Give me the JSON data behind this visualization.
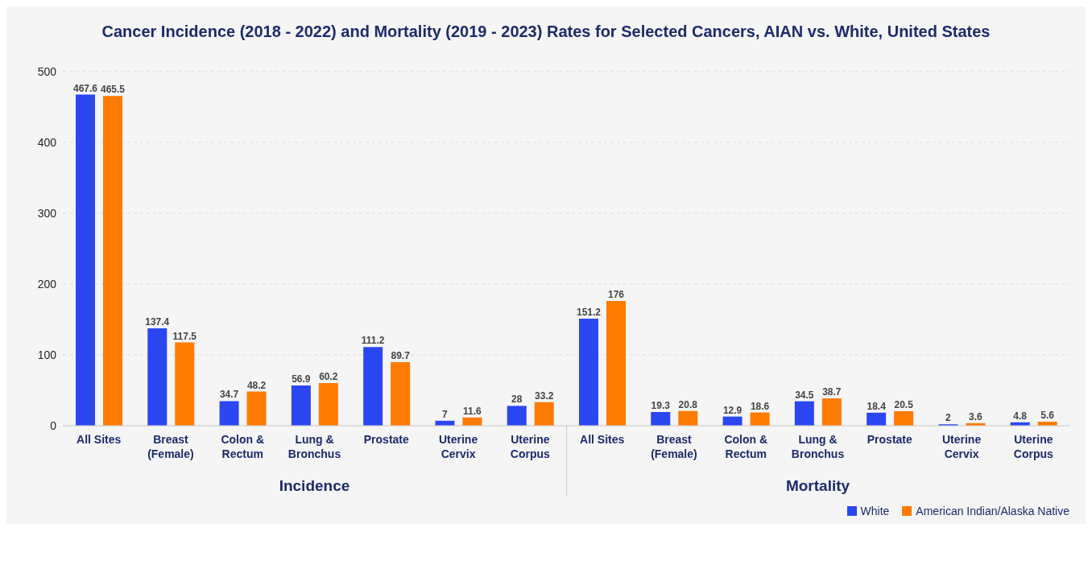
{
  "chart_data": {
    "type": "bar",
    "title": "Cancer Incidence (2018 - 2022) and Mortality (2019 - 2023) Rates for Selected Cancers, AIAN vs. White, United States",
    "categories": [
      "All Sites",
      "Breast\n(Female)",
      "Colon &\nRectum",
      "Lung &\nBronchus",
      "Prostate",
      "Uterine\nCervix",
      "Uterine\nCorpus",
      "All Sites",
      "Breast\n(Female)",
      "Colon &\nRectum",
      "Lung &\nBronchus",
      "Prostate",
      "Uterine\nCervix",
      "Uterine\nCorpus"
    ],
    "series": [
      {
        "name": "White",
        "color": "#2b47f2",
        "values": [
          467.6,
          137.4,
          34.7,
          56.9,
          111.2,
          7,
          28,
          151.2,
          19.3,
          12.9,
          34.5,
          18.4,
          2,
          4.8
        ]
      },
      {
        "name": "American Indian/Alaska Native",
        "color": "#ff7a00",
        "values": [
          465.5,
          117.5,
          48.2,
          60.2,
          89.7,
          11.6,
          33.2,
          176,
          20.8,
          18.6,
          38.7,
          20.5,
          3.6,
          5.6
        ]
      }
    ],
    "annotations": [
      "Incidence",
      "Mortality"
    ],
    "ylim": [
      0,
      500
    ],
    "yticks": [
      0,
      100,
      200,
      300,
      400,
      500
    ],
    "grid": "y",
    "legend": "bottom right",
    "data_labels": true
  }
}
